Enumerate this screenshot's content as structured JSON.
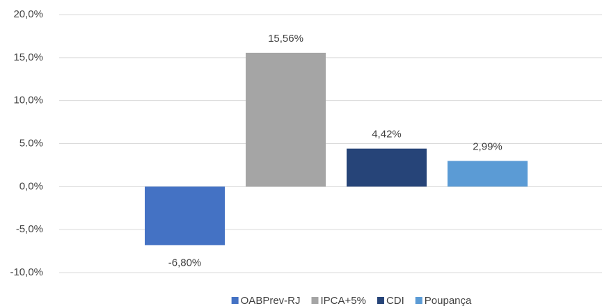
{
  "chart_data": {
    "type": "bar",
    "series": [
      {
        "name": "OABPrev-RJ",
        "color": "#4472c4",
        "values": [
          -6.8
        ],
        "value_labels": [
          "-6,80%"
        ]
      },
      {
        "name": "IPCA+5%",
        "color": "#a5a5a5",
        "values": [
          15.56
        ],
        "value_labels": [
          "15,56%"
        ]
      },
      {
        "name": "CDI",
        "color": "#264478",
        "values": [
          4.42
        ],
        "value_labels": [
          "4,42%"
        ]
      },
      {
        "name": "Poupança",
        "color": "#5b9bd5",
        "values": [
          2.99
        ],
        "value_labels": [
          "2,99%"
        ]
      }
    ],
    "ylim": [
      -10,
      20
    ],
    "yticks": [
      {
        "value": -10,
        "label": "-10,0%"
      },
      {
        "value": -5,
        "label": "-5,0%"
      },
      {
        "value": 0,
        "label": "0,0%"
      },
      {
        "value": 5,
        "label": "5.0%"
      },
      {
        "value": 10,
        "label": "10,0%"
      },
      {
        "value": 15,
        "label": "15,0%"
      },
      {
        "value": 20,
        "label": "20,0%"
      }
    ],
    "grid": true,
    "legend": "bottom"
  }
}
